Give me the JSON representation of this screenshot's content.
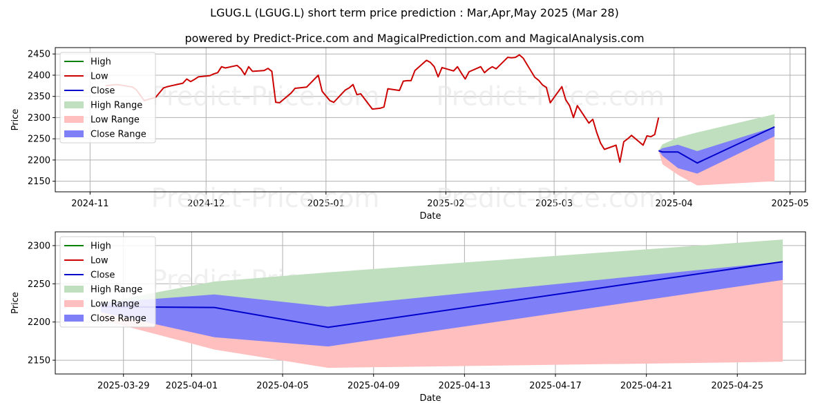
{
  "header": {
    "title": "LGUG.L (LGUG.L) short term price prediction : Mar,Apr,May 2025 (Mar 28)",
    "subtitle": "powered by Predict-Price.com and MagicalPrediction.com and MagicalAnalysis.com"
  },
  "watermark": "Predict-Price.com",
  "colors": {
    "high": "#008000",
    "low": "#cc0000",
    "close": "#0000cc",
    "high_range": "#bfdfbf",
    "low_range": "#ffbfbf",
    "close_range": "#7f7ff7"
  },
  "chart_data": [
    {
      "type": "line",
      "xlabel": "Date",
      "ylabel": "Price",
      "ylim": [
        2125,
        2465
      ],
      "yticks": [
        2150,
        2200,
        2250,
        2300,
        2350,
        2400,
        2450
      ],
      "xticks": [
        {
          "date": "2024-11-01",
          "label": "2024-11"
        },
        {
          "date": "2024-12-01",
          "label": "2024-12"
        },
        {
          "date": "2025-01-01",
          "label": "2025-01"
        },
        {
          "date": "2025-02-01",
          "label": "2025-02"
        },
        {
          "date": "2025-03-01",
          "label": "2025-03"
        },
        {
          "date": "2025-04-01",
          "label": "2025-04"
        },
        {
          "date": "2025-05-01",
          "label": "2025-05"
        }
      ],
      "grid": true,
      "legend": "upper left",
      "legend_entries": [
        "High",
        "Low",
        "Close",
        "High Range",
        "Low Range",
        "Close Range"
      ],
      "history": {
        "name": "Low",
        "x": [
          "2024-11-05",
          "2024-11-08",
          "2024-11-12",
          "2024-11-13",
          "2024-11-15",
          "2024-11-18",
          "2024-11-20",
          "2024-11-21",
          "2024-11-22",
          "2024-11-25",
          "2024-11-26",
          "2024-11-27",
          "2024-11-28",
          "2024-11-29",
          "2024-12-02",
          "2024-12-03",
          "2024-12-04",
          "2024-12-05",
          "2024-12-06",
          "2024-12-09",
          "2024-12-10",
          "2024-12-11",
          "2024-12-12",
          "2024-12-13",
          "2024-12-16",
          "2024-12-17",
          "2024-12-18",
          "2024-12-19",
          "2024-12-20",
          "2024-12-23",
          "2024-12-24",
          "2024-12-27",
          "2024-12-30",
          "2024-12-31",
          "2025-01-02",
          "2025-01-03",
          "2025-01-06",
          "2025-01-07",
          "2025-01-08",
          "2025-01-09",
          "2025-01-10",
          "2025-01-13",
          "2025-01-14",
          "2025-01-15",
          "2025-01-16",
          "2025-01-17",
          "2025-01-20",
          "2025-01-21",
          "2025-01-22",
          "2025-01-23",
          "2025-01-24",
          "2025-01-27",
          "2025-01-28",
          "2025-01-29",
          "2025-01-30",
          "2025-01-31",
          "2025-02-03",
          "2025-02-04",
          "2025-02-05",
          "2025-02-06",
          "2025-02-07",
          "2025-02-10",
          "2025-02-11",
          "2025-02-12",
          "2025-02-13",
          "2025-02-14",
          "2025-02-17",
          "2025-02-18",
          "2025-02-19",
          "2025-02-20",
          "2025-02-21",
          "2025-02-24",
          "2025-02-25",
          "2025-02-26",
          "2025-02-27",
          "2025-02-28",
          "2025-03-03",
          "2025-03-04",
          "2025-03-05",
          "2025-03-06",
          "2025-03-07",
          "2025-03-10",
          "2025-03-11",
          "2025-03-12",
          "2025-03-13",
          "2025-03-14",
          "2025-03-17",
          "2025-03-18",
          "2025-03-19",
          "2025-03-20",
          "2025-03-21",
          "2025-03-24",
          "2025-03-25",
          "2025-03-26",
          "2025-03-27",
          "2025-03-28"
        ],
        "y": [
          2375,
          2378,
          2372,
          2365,
          2340,
          2348,
          2370,
          2373,
          2375,
          2381,
          2391,
          2385,
          2390,
          2396,
          2399,
          2403,
          2406,
          2420,
          2417,
          2423,
          2415,
          2401,
          2420,
          2409,
          2411,
          2416,
          2409,
          2336,
          2335,
          2358,
          2369,
          2372,
          2400,
          2362,
          2340,
          2336,
          2365,
          2370,
          2378,
          2354,
          2356,
          2320,
          2321,
          2322,
          2325,
          2368,
          2364,
          2386,
          2387,
          2387,
          2411,
          2435,
          2430,
          2420,
          2396,
          2418,
          2410,
          2420,
          2405,
          2391,
          2408,
          2420,
          2406,
          2414,
          2420,
          2415,
          2442,
          2441,
          2442,
          2448,
          2440,
          2395,
          2388,
          2377,
          2371,
          2335,
          2373,
          2342,
          2328,
          2300,
          2328,
          2287,
          2296,
          2265,
          2240,
          2225,
          2235,
          2195,
          2243,
          2250,
          2258,
          2235,
          2257,
          2255,
          2260,
          2300
        ]
      },
      "forecast": {
        "x": [
          "2025-03-28",
          "2025-03-29",
          "2025-04-02",
          "2025-04-07",
          "2025-04-27"
        ],
        "high_range": {
          "upper": [
            2222,
            2237,
            2253,
            2265,
            2308
          ],
          "lower": [
            2222,
            2222,
            2219,
            2193,
            2278
          ]
        },
        "close_range": {
          "upper": [
            2222,
            2228,
            2236,
            2221,
            2278
          ],
          "lower": [
            2222,
            2210,
            2181,
            2168,
            2256
          ]
        },
        "low_range": {
          "upper": [
            2222,
            2220,
            2219,
            2193,
            2256
          ],
          "lower": [
            2222,
            2190,
            2165,
            2140,
            2150
          ]
        },
        "close": [
          2222,
          2219,
          2219,
          2193,
          2278
        ]
      }
    },
    {
      "type": "line",
      "xlabel": "Date",
      "ylabel": "Price",
      "ylim": [
        2132,
        2318
      ],
      "yticks": [
        2150,
        2200,
        2250,
        2300
      ],
      "xticks": [
        {
          "date": "2025-03-29",
          "label": "2025-03-29"
        },
        {
          "date": "2025-04-01",
          "label": "2025-04-01"
        },
        {
          "date": "2025-04-05",
          "label": "2025-04-05"
        },
        {
          "date": "2025-04-09",
          "label": "2025-04-09"
        },
        {
          "date": "2025-04-13",
          "label": "2025-04-13"
        },
        {
          "date": "2025-04-17",
          "label": "2025-04-17"
        },
        {
          "date": "2025-04-21",
          "label": "2025-04-21"
        },
        {
          "date": "2025-04-25",
          "label": "2025-04-25"
        }
      ],
      "grid": true,
      "legend": "upper left",
      "legend_entries": [
        "High",
        "Low",
        "Close",
        "High Range",
        "Low Range",
        "Close Range"
      ],
      "forecast": {
        "x": [
          "2025-03-28",
          "2025-04-02",
          "2025-04-07",
          "2025-04-27"
        ],
        "high_range": {
          "upper": [
            2225,
            2253,
            2265,
            2308
          ],
          "lower": [
            2221,
            2219,
            2193,
            2278
          ]
        },
        "close_range": {
          "upper": [
            2225,
            2236,
            2220,
            2279
          ],
          "lower": [
            2213,
            2180,
            2168,
            2255
          ]
        },
        "low_range": {
          "upper": [
            2221,
            2219,
            2193,
            2255
          ],
          "lower": [
            2203,
            2164,
            2140,
            2148
          ]
        },
        "close": [
          2220,
          2219,
          2193,
          2279
        ]
      }
    }
  ]
}
